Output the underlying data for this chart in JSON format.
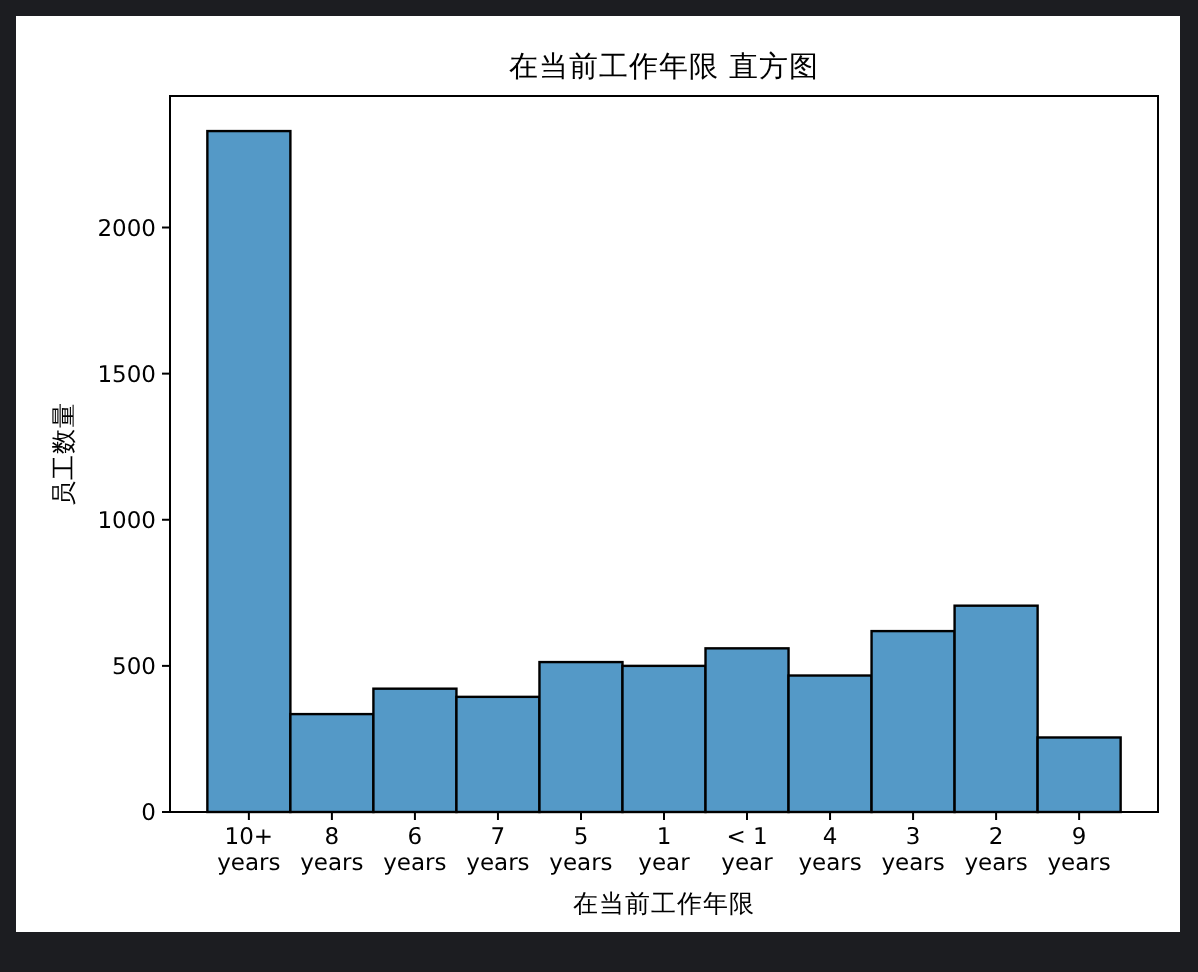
{
  "chart_data": {
    "type": "bar",
    "title": "在当前工作年限 直方图",
    "xlabel": "在当前工作年限",
    "ylabel": "员工数量",
    "categories": [
      "10+ years",
      "8 years",
      "6 years",
      "7 years",
      "5 years",
      "1 year",
      "< 1 year",
      "4 years",
      "3 years",
      "2 years",
      "9 years"
    ],
    "values": [
      2330,
      335,
      422,
      394,
      513,
      500,
      560,
      467,
      619,
      706,
      255
    ],
    "color": "#5499c7",
    "ylim": [
      0,
      2450
    ],
    "yticks": [
      0,
      500,
      1000,
      1500,
      2000
    ],
    "grid": false
  }
}
